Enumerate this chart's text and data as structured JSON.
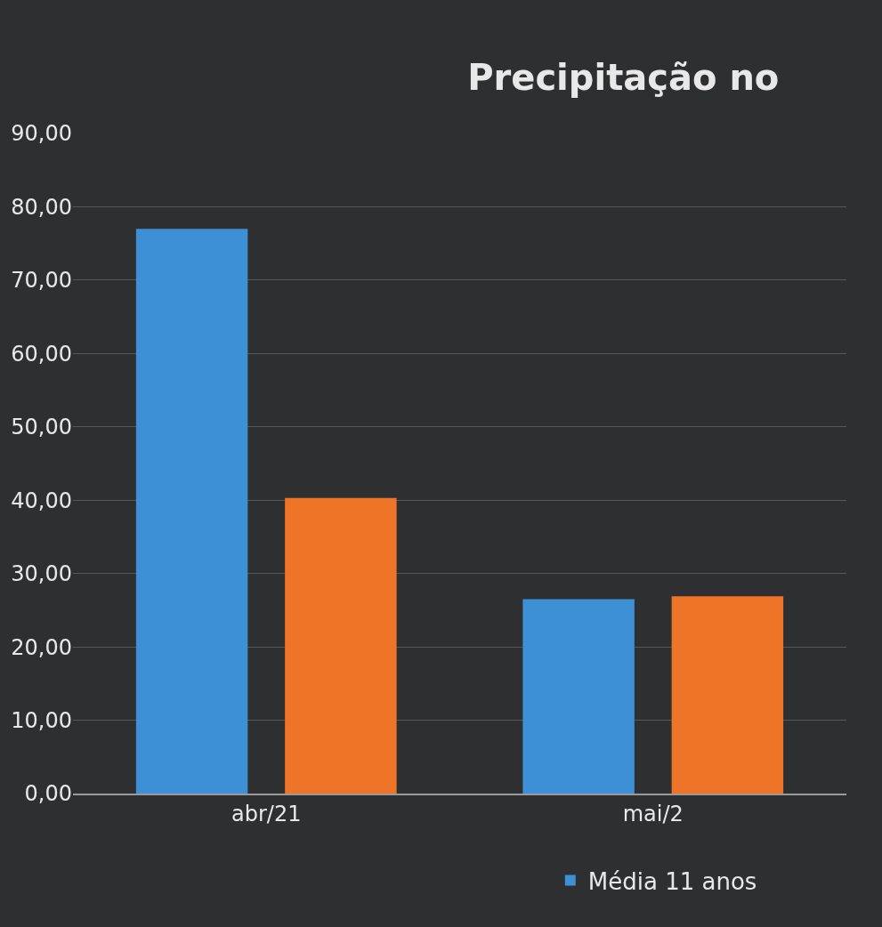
{
  "chart_data": {
    "type": "bar",
    "title": "Precipitação no",
    "categories": [
      "abr/21",
      "mai/2"
    ],
    "series": [
      {
        "name": "Média 11 anos",
        "color": "#3d8fd6",
        "values": [
          77.0,
          26.5
        ]
      },
      {
        "color": "#ee7428",
        "values": [
          40.3,
          26.9
        ]
      }
    ],
    "ylim": [
      0,
      90
    ],
    "yticks": [
      {
        "value": 0,
        "label": "0,00"
      },
      {
        "value": 10,
        "label": "10,00"
      },
      {
        "value": 20,
        "label": "20,00"
      },
      {
        "value": 30,
        "label": "30,00"
      },
      {
        "value": 40,
        "label": "40,00"
      },
      {
        "value": 50,
        "label": "50,00"
      },
      {
        "value": 60,
        "label": "60,00"
      },
      {
        "value": 70,
        "label": "70,00"
      },
      {
        "value": 80,
        "label": "80,00"
      },
      {
        "value": 90,
        "label": "90,00"
      }
    ],
    "grid": "y",
    "legend": "bottom"
  }
}
